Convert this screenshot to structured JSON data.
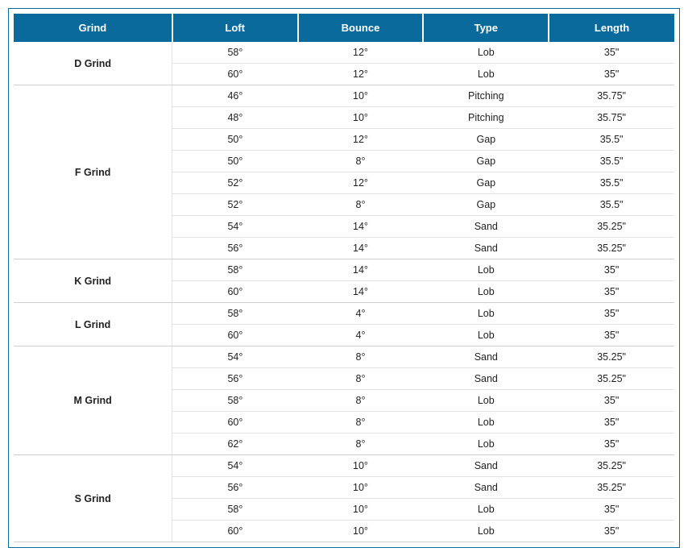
{
  "table": {
    "type": "table",
    "header_bg": "#0b6a9c",
    "header_color": "#ffffff",
    "border_color": "#0b6a9c",
    "row_border_color": "#e3e3e3",
    "group_border_color": "#cfcfcf",
    "text_color": "#222222",
    "font_family": "Arial",
    "header_fontsize": 13,
    "cell_fontsize": 12.5,
    "col_widths_pct": [
      24,
      19,
      19,
      19,
      19
    ],
    "columns": [
      "Grind",
      "Loft",
      "Bounce",
      "Type",
      "Length"
    ],
    "groups": [
      {
        "grind": "D Grind",
        "rows": [
          {
            "loft": "58°",
            "bounce": "12°",
            "type": "Lob",
            "length": "35\""
          },
          {
            "loft": "60°",
            "bounce": "12°",
            "type": "Lob",
            "length": "35\""
          }
        ]
      },
      {
        "grind": "F Grind",
        "rows": [
          {
            "loft": "46°",
            "bounce": "10°",
            "type": "Pitching",
            "length": "35.75\""
          },
          {
            "loft": "48°",
            "bounce": "10°",
            "type": "Pitching",
            "length": "35.75\""
          },
          {
            "loft": "50°",
            "bounce": "12°",
            "type": "Gap",
            "length": "35.5\""
          },
          {
            "loft": "50°",
            "bounce": "8°",
            "type": "Gap",
            "length": "35.5\""
          },
          {
            "loft": "52°",
            "bounce": "12°",
            "type": "Gap",
            "length": "35.5\""
          },
          {
            "loft": "52°",
            "bounce": "8°",
            "type": "Gap",
            "length": "35.5\""
          },
          {
            "loft": "54°",
            "bounce": "14°",
            "type": "Sand",
            "length": "35.25\""
          },
          {
            "loft": "56°",
            "bounce": "14°",
            "type": "Sand",
            "length": "35.25\""
          }
        ]
      },
      {
        "grind": "K Grind",
        "rows": [
          {
            "loft": "58°",
            "bounce": "14°",
            "type": "Lob",
            "length": "35\""
          },
          {
            "loft": "60°",
            "bounce": "14°",
            "type": "Lob",
            "length": "35\""
          }
        ]
      },
      {
        "grind": "L Grind",
        "rows": [
          {
            "loft": "58°",
            "bounce": "4°",
            "type": "Lob",
            "length": "35\""
          },
          {
            "loft": "60°",
            "bounce": "4°",
            "type": "Lob",
            "length": "35\""
          }
        ]
      },
      {
        "grind": "M Grind",
        "rows": [
          {
            "loft": "54°",
            "bounce": "8°",
            "type": "Sand",
            "length": "35.25\""
          },
          {
            "loft": "56°",
            "bounce": "8°",
            "type": "Sand",
            "length": "35.25\""
          },
          {
            "loft": "58°",
            "bounce": "8°",
            "type": "Lob",
            "length": "35\""
          },
          {
            "loft": "60°",
            "bounce": "8°",
            "type": "Lob",
            "length": "35\""
          },
          {
            "loft": "62°",
            "bounce": "8°",
            "type": "Lob",
            "length": "35\""
          }
        ]
      },
      {
        "grind": "S Grind",
        "rows": [
          {
            "loft": "54°",
            "bounce": "10°",
            "type": "Sand",
            "length": "35.25\""
          },
          {
            "loft": "56°",
            "bounce": "10°",
            "type": "Sand",
            "length": "35.25\""
          },
          {
            "loft": "58°",
            "bounce": "10°",
            "type": "Lob",
            "length": "35\""
          },
          {
            "loft": "60°",
            "bounce": "10°",
            "type": "Lob",
            "length": "35\""
          }
        ]
      }
    ]
  }
}
